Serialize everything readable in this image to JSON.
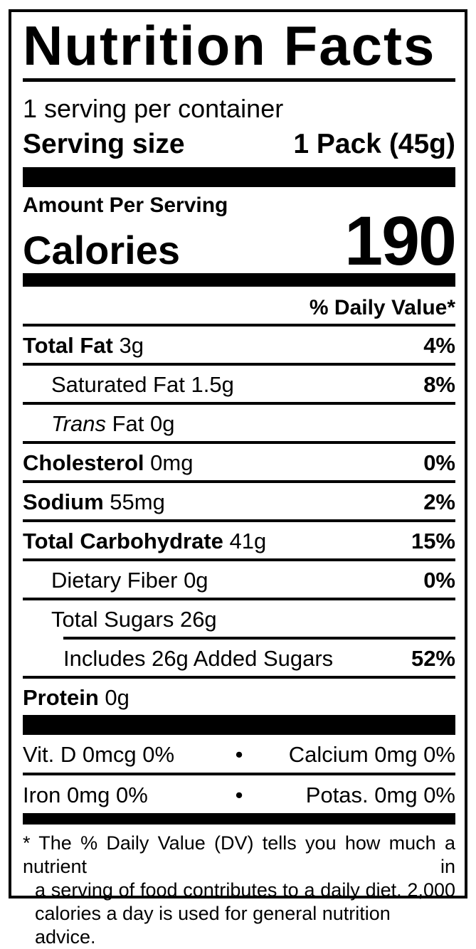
{
  "title": "Nutrition Facts",
  "serving_info": {
    "servings_per_container": "1 serving per container",
    "serving_size_label": "Serving size",
    "serving_size_value": "1 Pack (45g)"
  },
  "calories": {
    "section_label": "Amount Per Serving",
    "label": "Calories",
    "value": "190"
  },
  "daily_value_header": "% Daily Value*",
  "nutrients": [
    {
      "name": "Total Fat",
      "amount": "3g",
      "dv": "4%"
    },
    {
      "name": "Saturated Fat",
      "amount": "1.5g",
      "dv": "8%"
    },
    {
      "name_italic": "Trans",
      "name": "Fat",
      "amount": "0g",
      "dv": ""
    },
    {
      "name": "Cholesterol",
      "amount": "0mg",
      "dv": "0%"
    },
    {
      "name": "Sodium",
      "amount": "55mg",
      "dv": "2%"
    },
    {
      "name": "Total Carbohydrate",
      "amount": "41g",
      "dv": "15%"
    },
    {
      "name": "Dietary Fiber",
      "amount": "0g",
      "dv": "0%"
    },
    {
      "name": "Total Sugars",
      "amount": "26g",
      "dv": ""
    },
    {
      "name": "Includes 26g Added Sugars",
      "amount": "",
      "dv": "52%"
    },
    {
      "name": "Protein",
      "amount": "0g",
      "dv": ""
    }
  ],
  "micronutrients": {
    "separator": "•",
    "rows": [
      {
        "left": "Vit. D 0mcg 0%",
        "right": "Calcium 0mg 0%"
      },
      {
        "left": "Iron 0mg 0%",
        "right": "Potas. 0mg 0%"
      }
    ]
  },
  "footnote": {
    "lines": [
      "* The % Daily Value (DV) tells you how much a nutrient in",
      "a serving of food contributes to a daily diet. 2,000",
      "calories a day is used for general nutrition advice."
    ]
  },
  "colors": {
    "ink": "#000000",
    "background": "#ffffff"
  }
}
